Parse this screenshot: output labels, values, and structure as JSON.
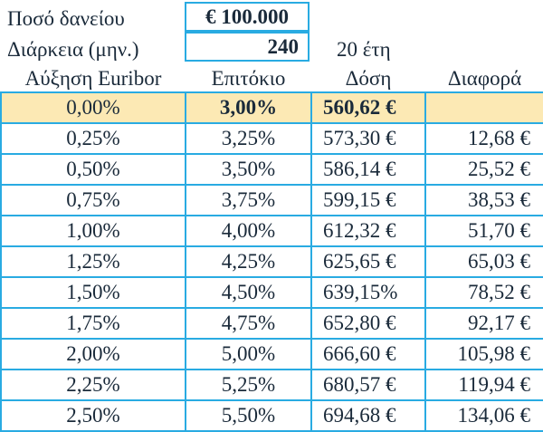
{
  "loan": {
    "amount_label": "Ποσό δανείου",
    "amount_value": "€ 100.000",
    "duration_label": "Διάρκεια (μηνιαίες)",
    "duration_label_display": "Διάρκεια (μην.)",
    "duration_value": "240",
    "duration_years": "20 έτη"
  },
  "table": {
    "headers": [
      "Αύξηση Euribor",
      "Επιτόκιο",
      "Δόση",
      "Διαφορά"
    ],
    "base_row": [
      "0,00%",
      "3,00%",
      "560,62 €",
      ""
    ],
    "rows": [
      [
        "0,25%",
        "3,25%",
        "573,30 €",
        "12,68 €"
      ],
      [
        "0,50%",
        "3,50%",
        "586,14 €",
        "25,52 €"
      ],
      [
        "0,75%",
        "3,75%",
        "599,15 €",
        "38,53 €"
      ],
      [
        "1,00%",
        "4,00%",
        "612,32 €",
        "51,70 €"
      ],
      [
        "1,25%",
        "4,25%",
        "625,65 €",
        "65,03 €"
      ],
      [
        "1,50%",
        "4,50%",
        "639,15%",
        "78,52 €"
      ],
      [
        "1,75%",
        "4,75%",
        "652,80 €",
        "92,17 €"
      ],
      [
        "2,00%",
        "5,00%",
        "666,60 €",
        "105,98 €"
      ],
      [
        "2,25%",
        "5,25%",
        "680,57 €",
        "119,94 €"
      ],
      [
        "2,50%",
        "5,50%",
        "694,68 €",
        "134,06 €"
      ]
    ]
  },
  "colors": {
    "grid": "#29abe2",
    "base_row_fill": "#fce9b4",
    "text": "#1a2a3a"
  }
}
